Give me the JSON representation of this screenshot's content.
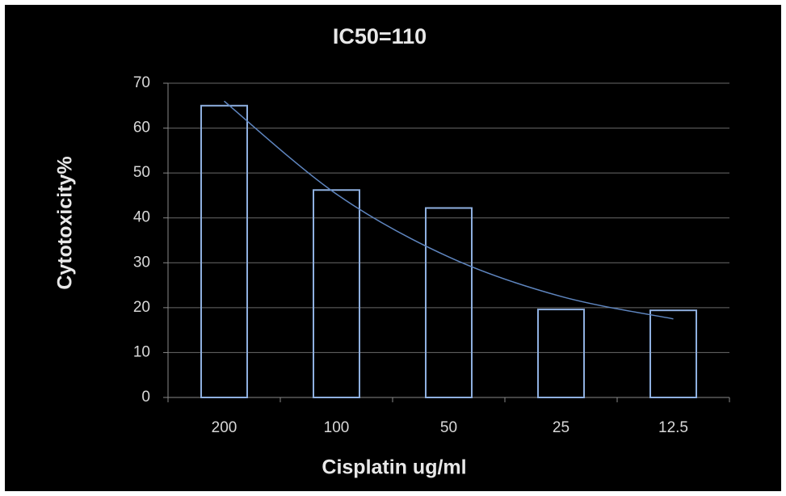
{
  "chart_data": {
    "type": "bar",
    "title": "IC50=110",
    "x_label": "Cisplatin ug/ml",
    "y_label": "Cytotoxicity%",
    "categories": [
      "200",
      "100",
      "50",
      "25",
      "12.5"
    ],
    "values": [
      65,
      46.2,
      42.2,
      19.6,
      19.4
    ],
    "color": "#8fb0e0",
    "trendline": {
      "values": [
        66,
        45.3,
        31.3,
        22.5,
        17.5
      ],
      "color": "#5f86c0"
    },
    "ylim": [
      0,
      70
    ],
    "yticks": [
      0,
      10,
      20,
      30,
      40,
      50,
      60,
      70
    ],
    "grid": true
  }
}
